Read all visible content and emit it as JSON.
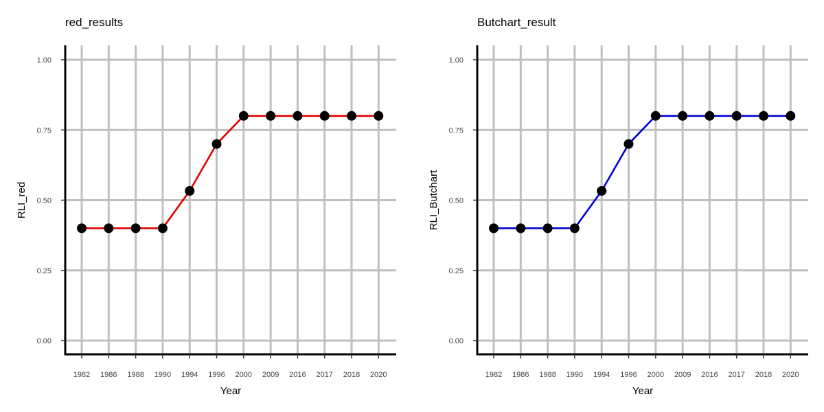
{
  "chart_data": [
    {
      "type": "line",
      "title": "red_results",
      "xlabel": "Year",
      "ylabel": "RLI_red",
      "categories": [
        "1982",
        "1986",
        "1988",
        "1990",
        "1994",
        "1996",
        "2000",
        "2009",
        "2016",
        "2017",
        "2018",
        "2020"
      ],
      "series": [
        {
          "values": [
            0.4,
            0.4,
            0.4,
            0.4,
            0.533,
            0.7,
            0.8,
            0.8,
            0.8,
            0.8,
            0.8,
            0.8
          ],
          "color": "#e00000"
        }
      ],
      "ylim": [
        0,
        1
      ],
      "yticks": [
        0.0,
        0.25,
        0.5,
        0.75,
        1.0
      ],
      "ytick_labels": [
        "0.00",
        "0.25",
        "0.50",
        "0.75",
        "1.00"
      ],
      "grid": true,
      "marker_color": "#000000"
    },
    {
      "type": "line",
      "title": "Butchart_result",
      "xlabel": "Year",
      "ylabel": "RLI_Butchart",
      "categories": [
        "1982",
        "1986",
        "1988",
        "1990",
        "1994",
        "1996",
        "2000",
        "2009",
        "2016",
        "2017",
        "2018",
        "2020"
      ],
      "series": [
        {
          "values": [
            0.4,
            0.4,
            0.4,
            0.4,
            0.533,
            0.7,
            0.8,
            0.8,
            0.8,
            0.8,
            0.8,
            0.8
          ],
          "color": "#0000d0"
        }
      ],
      "ylim": [
        0,
        1
      ],
      "yticks": [
        0.0,
        0.25,
        0.5,
        0.75,
        1.0
      ],
      "ytick_labels": [
        "0.00",
        "0.25",
        "0.50",
        "0.75",
        "1.00"
      ],
      "grid": true,
      "marker_color": "#000000"
    }
  ]
}
